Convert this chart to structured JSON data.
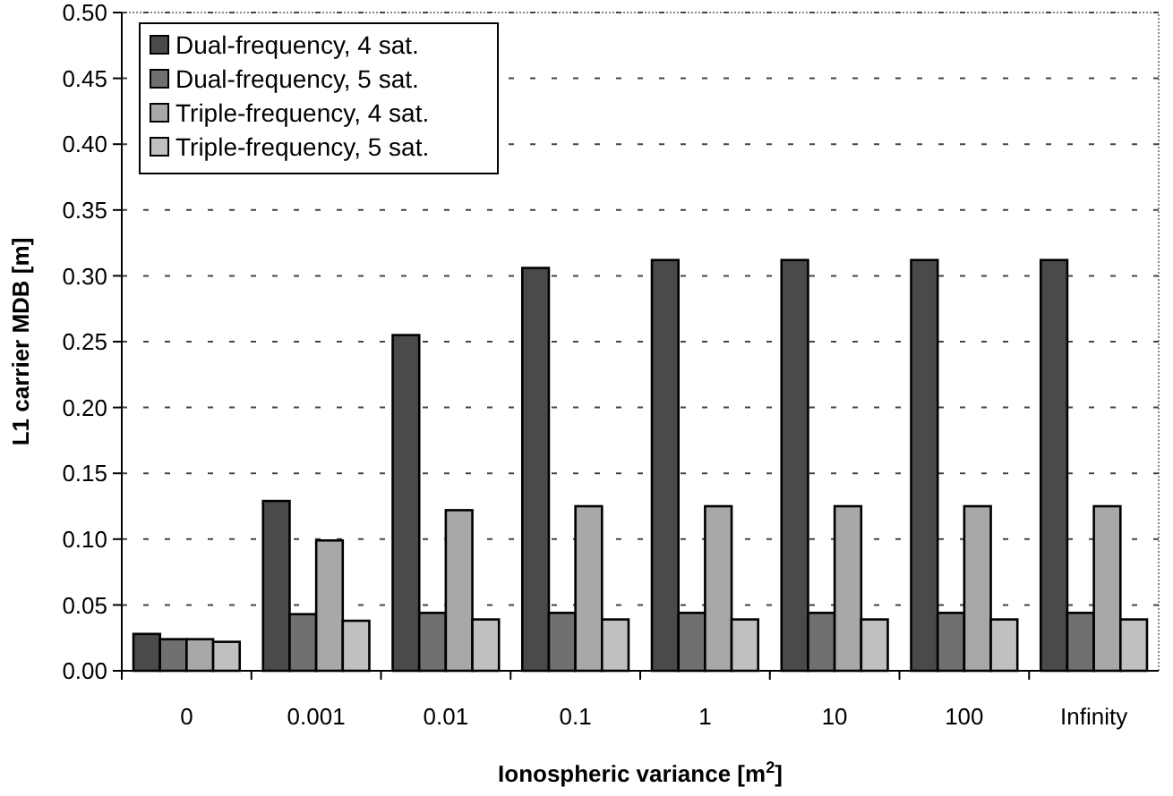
{
  "chart_data": {
    "type": "bar",
    "xlabel": "Ionospheric variance [m$^{2}$]",
    "ylabel": "L1 carrier MDB [m]",
    "categories": [
      "0",
      "0.001",
      "0.01",
      "0.1",
      "1",
      "10",
      "100",
      "Infinity"
    ],
    "series": [
      {
        "name": "Dual-frequency, 4 sat.",
        "color": "#4a4a4a",
        "values": [
          0.028,
          0.129,
          0.255,
          0.306,
          0.312,
          0.312,
          0.312,
          0.312
        ]
      },
      {
        "name": "Dual-frequency, 5 sat.",
        "color": "#707070",
        "values": [
          0.024,
          0.043,
          0.044,
          0.044,
          0.044,
          0.044,
          0.044,
          0.044
        ]
      },
      {
        "name": "Triple-frequency, 4 sat.",
        "color": "#a8a8a8",
        "values": [
          0.024,
          0.099,
          0.122,
          0.125,
          0.125,
          0.125,
          0.125,
          0.125
        ]
      },
      {
        "name": "Triple-frequency, 5 sat.",
        "color": "#c0c0c0",
        "values": [
          0.022,
          0.038,
          0.039,
          0.039,
          0.039,
          0.039,
          0.039,
          0.039
        ]
      }
    ],
    "ylim": [
      0,
      0.5
    ],
    "yticks": [
      {
        "value": 0,
        "label": "0.00"
      },
      {
        "value": 0.05,
        "label": "0.05"
      },
      {
        "value": 0.1,
        "label": "0.10"
      },
      {
        "value": 0.15,
        "label": "0.15"
      },
      {
        "value": 0.2,
        "label": "0.20"
      },
      {
        "value": 0.25,
        "label": "0.25"
      },
      {
        "value": 0.3,
        "label": "0.30"
      },
      {
        "value": 0.35,
        "label": "0.35"
      },
      {
        "value": 0.4,
        "label": "0.40"
      },
      {
        "value": 0.45,
        "label": "0.45"
      },
      {
        "value": 0.5,
        "label": "0.50"
      }
    ],
    "grid": "y",
    "legend": "top left"
  }
}
